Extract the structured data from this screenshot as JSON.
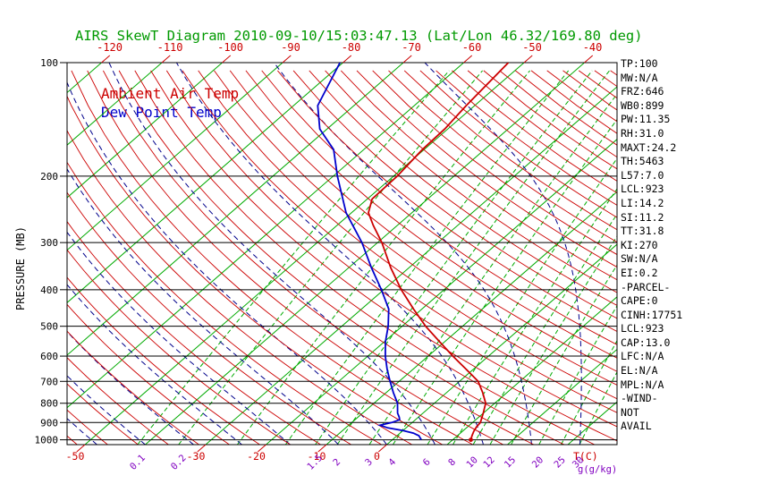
{
  "title": "AIRS SkewT Diagram 2010-09-10/15:03:47.13 (Lat/Lon 46.32/169.80 deg)",
  "legend": {
    "ambient_label": "Ambient Air Temp",
    "dewpoint_label": "Dew Point Temp"
  },
  "axes": {
    "pressure_axis_label": "PRESSURE (MB)",
    "pressure_ticks": [
      100,
      200,
      300,
      400,
      500,
      600,
      700,
      800,
      900,
      1000
    ],
    "top_temperature_ticks_c": [
      -120,
      -110,
      -100,
      -90,
      -80,
      -70,
      -60,
      -50,
      -40
    ],
    "bottom_temperature_ticks_c": [
      -50,
      -30,
      -20,
      -10,
      0
    ],
    "temperature_unit_label": "T(C)",
    "mixing_ratio_tick_labels_gkg": [
      0.1,
      0.2,
      1.5,
      2,
      3,
      4,
      6,
      8,
      10,
      12,
      15,
      20,
      25,
      30
    ],
    "mixing_ratio_unit_label": "g(g/kg)"
  },
  "stats_panel": [
    "TP:100",
    "MW:N/A",
    "FRZ:646",
    "WB0:899",
    "PW:11.35",
    "RH:31.0",
    "MAXT:24.2",
    "TH:5463",
    "L57:7.0",
    "LCL:923",
    "LI:14.2",
    "SI:11.2",
    "TT:31.8",
    "KI:270",
    "SW:N/A",
    "EI:0.2",
    "-PARCEL-",
    "CAPE:0",
    "CINH:17751",
    "LCL:923",
    "CAP:13.0",
    "LFC:N/A",
    "EL:N/A",
    "MPL:N/A",
    "-WIND-",
    "NOT",
    "AVAIL"
  ],
  "colors": {
    "title": "#009900",
    "isotherm": "#00aa00",
    "mixing_ratio": "#00aa00",
    "dry_adiabat": "#cc0000",
    "moist_adiabat": "#00008b",
    "pressure_line": "#000000",
    "ambient_temp": "#cc0000",
    "dew_point": "#0000cc",
    "top_axis_text": "#cc0000",
    "bottom_temp_text": "#cc0000",
    "mixing_text": "#8000c0"
  },
  "chart_data": {
    "type": "line",
    "chart_kind": "skewt-log-p",
    "pressure_axis_mb": {
      "top": 100,
      "bottom": 1030,
      "scale": "log"
    },
    "temperature_axis_c": {
      "surface_min": -50,
      "surface_max": 38,
      "skewed": true
    },
    "isotherms_c": {
      "start": -120,
      "end": 40,
      "step": 10
    },
    "dry_adiabats_theta_k": {
      "start": 215,
      "end": 460,
      "step": 5
    },
    "moist_adiabats_surface_temp_c": {
      "start": -64,
      "end": 40,
      "step": 8
    },
    "mixing_ratio_lines_gkg": [
      0.1,
      0.2,
      0.5,
      1,
      1.5,
      2,
      3,
      4,
      6,
      8,
      10,
      12,
      15,
      20,
      25,
      30
    ],
    "series": [
      {
        "name": "Ambient Air Temp",
        "color": "#cc0000",
        "points_p_mb_t_c": [
          [
            1000,
            13.0
          ],
          [
            975,
            12.4
          ],
          [
            950,
            11.9
          ],
          [
            925,
            11.5
          ],
          [
            900,
            11.3
          ],
          [
            850,
            10.0
          ],
          [
            800,
            8.5
          ],
          [
            750,
            6.0
          ],
          [
            700,
            3.1
          ],
          [
            650,
            -1.2
          ],
          [
            600,
            -5.9
          ],
          [
            550,
            -10.8
          ],
          [
            500,
            -16.1
          ],
          [
            450,
            -21.4
          ],
          [
            400,
            -27.1
          ],
          [
            350,
            -33.0
          ],
          [
            300,
            -39.3
          ],
          [
            270,
            -44.0
          ],
          [
            250,
            -47.2
          ],
          [
            230,
            -49.2
          ],
          [
            200,
            -49.4
          ],
          [
            170,
            -50.3
          ],
          [
            150,
            -50.5
          ],
          [
            130,
            -51.4
          ],
          [
            100,
            -52.6
          ]
        ]
      },
      {
        "name": "Dew Point Temp",
        "color": "#0000cc",
        "points_p_mb_t_c": [
          [
            1000,
            4.8
          ],
          [
            975,
            3.6
          ],
          [
            960,
            2.2
          ],
          [
            945,
            0.0
          ],
          [
            930,
            -3.0
          ],
          [
            915,
            -4.8
          ],
          [
            900,
            -3.4
          ],
          [
            885,
            -2.6
          ],
          [
            870,
            -3.2
          ],
          [
            850,
            -4.2
          ],
          [
            800,
            -6.1
          ],
          [
            750,
            -8.8
          ],
          [
            700,
            -11.5
          ],
          [
            650,
            -14.3
          ],
          [
            600,
            -17.1
          ],
          [
            550,
            -19.8
          ],
          [
            500,
            -22.3
          ],
          [
            450,
            -25.5
          ],
          [
            400,
            -30.4
          ],
          [
            350,
            -36.2
          ],
          [
            300,
            -42.6
          ],
          [
            250,
            -50.9
          ],
          [
            200,
            -59.3
          ],
          [
            170,
            -65.0
          ],
          [
            150,
            -71.2
          ],
          [
            130,
            -76.0
          ],
          [
            100,
            -80.5
          ]
        ]
      }
    ]
  }
}
